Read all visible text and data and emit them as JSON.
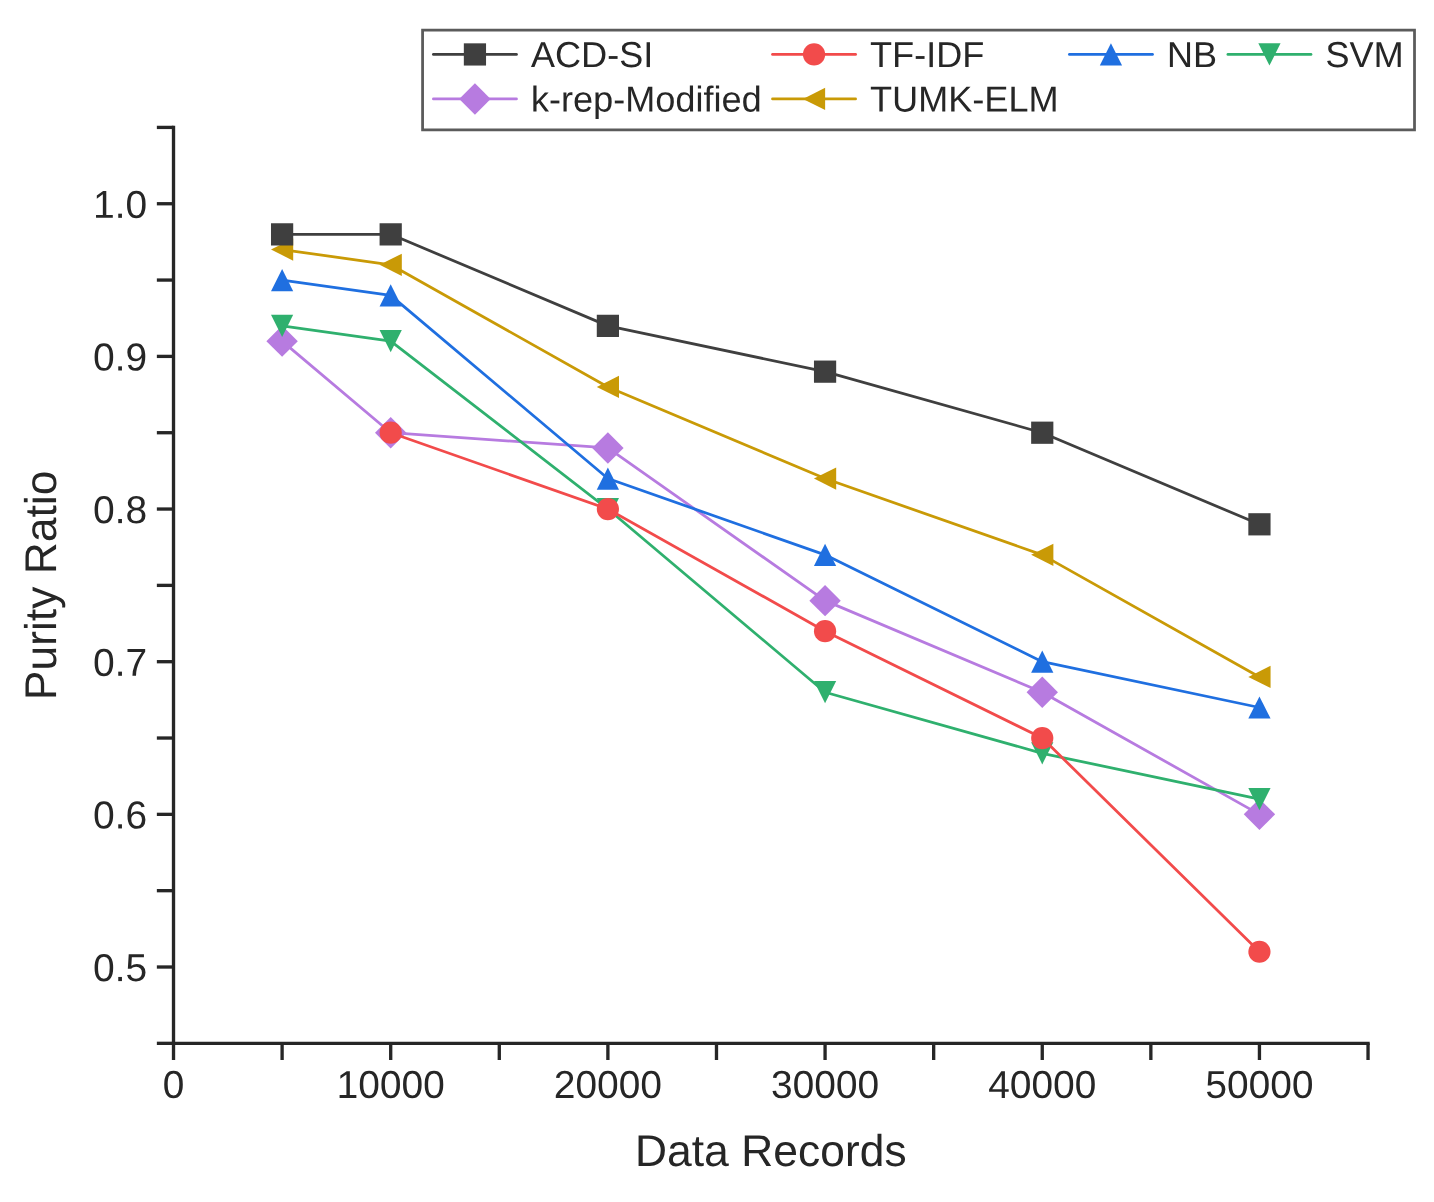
{
  "chart_data": {
    "type": "line",
    "xlabel": "Data Records",
    "ylabel": "Purity Ratio",
    "x": [
      5000,
      10000,
      20000,
      30000,
      40000,
      50000
    ],
    "series": [
      {
        "name": "ACD-SI",
        "color": "#3f3f3f",
        "marker": "square",
        "values": [
          0.98,
          0.98,
          0.92,
          0.89,
          0.85,
          0.79
        ]
      },
      {
        "name": "TF-IDF",
        "color": "#f24b4b",
        "marker": "circle",
        "values": [
          null,
          0.85,
          0.8,
          0.72,
          0.65,
          0.51
        ]
      },
      {
        "name": "NB",
        "color": "#1f6fe0",
        "marker": "triangle",
        "values": [
          0.95,
          0.94,
          0.82,
          0.77,
          0.7,
          0.67
        ]
      },
      {
        "name": "SVM",
        "color": "#2fb06e",
        "marker": "triangle_down",
        "values": [
          0.92,
          0.91,
          0.8,
          0.68,
          0.64,
          0.61
        ]
      },
      {
        "name": "k-rep-Modified",
        "color": "#b77be0",
        "marker": "diamond",
        "values": [
          0.91,
          0.85,
          0.84,
          0.74,
          0.68,
          0.6
        ]
      },
      {
        "name": "TUMK-ELM",
        "color": "#c99a06",
        "marker": "triangle_left",
        "values": [
          0.97,
          0.96,
          0.88,
          0.82,
          0.77,
          0.69
        ]
      }
    ],
    "xlim": [
      0,
      55000
    ],
    "xticks": [
      0,
      {
        "value": 5000,
        "label": null
      },
      10000,
      {
        "value": 15000,
        "label": null
      },
      20000,
      {
        "value": 25000,
        "label": null
      },
      30000,
      {
        "value": 35000,
        "label": null
      },
      40000,
      {
        "value": 45000,
        "label": null
      },
      50000,
      {
        "value": 55000,
        "label": null
      }
    ],
    "ylim": [
      0.45,
      1.05
    ],
    "yticks": [
      {
        "value": 0.45,
        "label": null
      },
      0.5,
      {
        "value": 0.55,
        "label": null
      },
      0.6,
      {
        "value": 0.65,
        "label": null
      },
      0.7,
      {
        "value": 0.75,
        "label": null
      },
      0.8,
      {
        "value": 0.85,
        "label": null
      },
      0.9,
      {
        "value": 0.95,
        "label": null
      },
      {
        "value": 1.0,
        "label": "1.0"
      },
      {
        "value": 1.05,
        "label": null
      }
    ],
    "grid": false,
    "legend": "top right",
    "line_style": "solid"
  }
}
